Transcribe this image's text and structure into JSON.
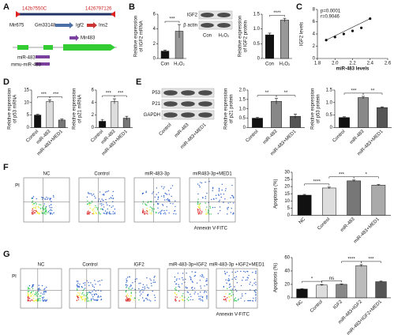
{
  "panel_labels": [
    "A",
    "B",
    "C",
    "D",
    "E",
    "F",
    "G"
  ],
  "gene_map": {
    "start": "142b7550C",
    "end": "1426797126",
    "genes": [
      "Mir675",
      "Gm33148",
      "Igf2",
      "Ins2"
    ],
    "mir": "Mir483",
    "mature": [
      "miR-483",
      "mmu-miR-483"
    ]
  },
  "blot_b": {
    "bands": [
      "IGF2",
      "β actin"
    ],
    "lanes": [
      "Con",
      "H₂O₂"
    ]
  },
  "blot_e": {
    "bands": [
      "P53",
      "P21",
      "GAPDH"
    ],
    "lanes": [
      "Control",
      "miR-483",
      "miR-483+MED1"
    ]
  },
  "flow_f": {
    "plots": [
      "NC",
      "Control",
      "miR-483-3p",
      "miR483-3p+MED1"
    ],
    "xlabel": "Annexin V-FITC",
    "ylabel": "PI"
  },
  "flow_g": {
    "plots": [
      "NC",
      "Control",
      "IGF2",
      "miR-483-3p+IGF2",
      "miR-483-3p +IGF2+MED1"
    ],
    "xlabel": "Annexin V-FITC",
    "ylabel": "PI"
  },
  "chart_data": [
    {
      "type": "bar",
      "ylabel": [
        "Relative expression",
        "of IGF2 mRNA"
      ],
      "categories": [
        "Con",
        "H₂O₂"
      ],
      "values": [
        1,
        3.7
      ],
      "errors": [
        0.15,
        0.9
      ],
      "colors": [
        "#111111",
        "#999999"
      ],
      "ylim": [
        0,
        6
      ],
      "yticks": [
        0,
        2,
        4,
        6
      ],
      "significance": [
        "***"
      ]
    },
    {
      "type": "bar",
      "ylabel": [
        "Relative expression",
        "of IGF2 protein"
      ],
      "categories": [
        "Con",
        "H₂O₂"
      ],
      "values": [
        0.8,
        1.3
      ],
      "errors": [
        0.06,
        0.06
      ],
      "colors": [
        "#111111",
        "#999999"
      ],
      "ylim": [
        0,
        1.5
      ],
      "yticks": [
        0,
        0.5,
        {
          "value": 1,
          "label": "1.0"
        },
        1.5
      ],
      "significance": [
        "****"
      ]
    },
    {
      "type": "scatter",
      "xlabel": "miR-483 levels",
      "ylabel": [
        "IGF2 levels"
      ],
      "annotations": [
        "p=0.0001",
        "r=0.9046"
      ],
      "x": [
        1.9,
        2.0,
        2.1,
        2.2,
        2.3,
        2.4
      ],
      "y": [
        3,
        3.5,
        4,
        4.5,
        5,
        6.5
      ],
      "xlim": [
        1.8,
        2.6
      ],
      "xticks": [
        1.8,
        {
          "value": 2,
          "label": "2.0"
        },
        2.2,
        2.4,
        2.6
      ],
      "ylim": [
        0,
        8
      ],
      "yticks": [
        0,
        2,
        4,
        6,
        8
      ]
    },
    {
      "type": "bar",
      "ylabel": [
        "Relative expression",
        "of p53 mRNA"
      ],
      "categories": [
        "Control",
        "miR-483",
        "miR-483+MED1"
      ],
      "values": [
        5,
        10.5,
        3
      ],
      "errors": [
        0.3,
        0.6,
        0.4
      ],
      "colors": [
        "#111111",
        "#dddddd",
        "#777777"
      ],
      "ylim": [
        0,
        15
      ],
      "yticks": [
        0,
        5,
        10,
        15
      ],
      "significance": [
        "***",
        "***"
      ]
    },
    {
      "type": "bar",
      "ylabel": [
        "Relative expression",
        "of p21 mRNA"
      ],
      "categories": [
        "Control",
        "miR-483",
        "miR-483+MED1"
      ],
      "values": [
        1,
        4.2,
        1.5
      ],
      "errors": [
        0.3,
        0.4,
        0.3
      ],
      "colors": [
        "#111111",
        "#dddddd",
        "#777777"
      ],
      "ylim": [
        0,
        6
      ],
      "yticks": [
        0,
        2,
        4,
        6
      ],
      "significance": [
        "***",
        "***"
      ]
    },
    {
      "type": "bar",
      "ylabel": [
        "Relative expression",
        "of p21 protein"
      ],
      "categories": [
        "Control",
        "miR-483",
        "miR-483+MED1"
      ],
      "values": [
        0.5,
        1.4,
        0.6
      ],
      "errors": [
        0.05,
        0.15,
        0.12
      ],
      "colors": [
        "#111111",
        "#888888",
        "#555555"
      ],
      "ylim": [
        0,
        2
      ],
      "yticks": [
        0,
        0.5,
        {
          "value": 1,
          "label": "1.0"
        },
        1.5,
        {
          "value": 2,
          "label": "2.0"
        }
      ],
      "significance": [
        "**",
        "**"
      ]
    },
    {
      "type": "bar",
      "ylabel": [
        "Relative expression",
        "of p53 protein"
      ],
      "categories": [
        "Control",
        "miR-483",
        "miR-483+MED1"
      ],
      "values": [
        0.4,
        1.2,
        0.8
      ],
      "errors": [
        0.03,
        0.05,
        0.03
      ],
      "colors": [
        "#111111",
        "#888888",
        "#555555"
      ],
      "ylim": [
        0,
        1.5
      ],
      "yticks": [
        0,
        0.5,
        {
          "value": 1,
          "label": "1.0"
        },
        1.5
      ],
      "significance": [
        "***",
        "**"
      ]
    },
    {
      "type": "bar",
      "ylabel": [
        "Apoptosis (%)"
      ],
      "categories": [
        "NC",
        "Control",
        "miR-483",
        "miR-483+MED1"
      ],
      "values": [
        14,
        19,
        24,
        21
      ],
      "errors": [
        0.5,
        0.6,
        0.6,
        0.4
      ],
      "colors": [
        "#111111",
        "#dddddd",
        "#777777",
        "#aaaaaa"
      ],
      "ylim": [
        0,
        30
      ],
      "yticks": [
        0,
        5,
        10,
        15,
        20,
        25,
        30
      ],
      "significance": [
        "****",
        "***",
        "*"
      ]
    },
    {
      "type": "bar",
      "ylabel": [
        "Apoptosis (%)"
      ],
      "categories": [
        "NC",
        "Control",
        "IGF2",
        "miR-483+IGF2",
        "miR-483+IGF2+MED1"
      ],
      "values": [
        13,
        19,
        20,
        48,
        24
      ],
      "errors": [
        0.5,
        0.8,
        0.8,
        1.5,
        0.8
      ],
      "colors": [
        "#111111",
        "#dddddd",
        "#888888",
        "#bbbbbb",
        "#555555"
      ],
      "ylim": [
        0,
        60
      ],
      "yticks": [
        0,
        20,
        40,
        60
      ],
      "significance": [
        "*",
        "ns",
        "****",
        "***"
      ]
    }
  ]
}
